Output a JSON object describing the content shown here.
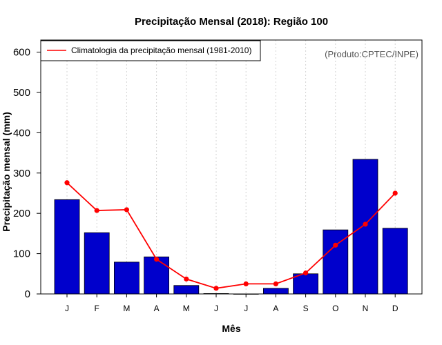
{
  "chart_data": {
    "type": "bar",
    "title": "Precipitação Mensal (2018): Região 100",
    "xlabel": "Mês",
    "ylabel": "Precipitação mensal (mm)",
    "categories": [
      "J",
      "F",
      "M",
      "A",
      "M",
      "J",
      "J",
      "A",
      "S",
      "O",
      "N",
      "D"
    ],
    "ylim": [
      0,
      630
    ],
    "yticks": [
      0,
      100,
      200,
      300,
      400,
      500,
      600
    ],
    "series": [
      {
        "name": "2018",
        "kind": "bar",
        "color": "#0000CC",
        "values": [
          234,
          152,
          79,
          92,
          21,
          1,
          0,
          14,
          50,
          159,
          334,
          163
        ]
      },
      {
        "name": "Climatologia da precipitação mensal (1981-2010)",
        "kind": "line",
        "color": "#FF0000",
        "values": [
          276,
          207,
          209,
          86,
          37,
          14,
          25,
          25,
          52,
          121,
          173,
          250
        ]
      }
    ],
    "legend": {
      "position": "top-left",
      "label": "Climatologia da precipitação mensal (1981-2010)"
    },
    "annotation": "(Produto:CPTEC/INPE)",
    "grid": "vertical-dotted"
  }
}
